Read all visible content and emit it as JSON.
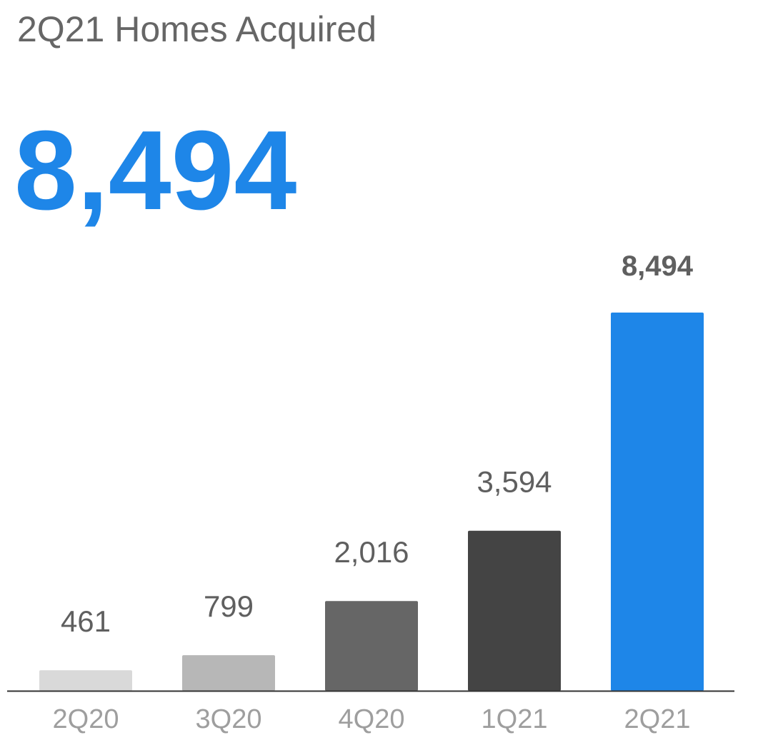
{
  "title": "2Q21 Homes Acquired",
  "headline_value": "8,494",
  "colors": {
    "title": "#666666",
    "headline": "#1e86e8",
    "label": "#5f5f5f",
    "tick": "#9e9e9e",
    "axis": "#333333"
  },
  "chart_data": {
    "type": "bar",
    "title": "2Q21 Homes Acquired",
    "xlabel": "",
    "ylabel": "",
    "ylim": [
      0,
      8494
    ],
    "grid": false,
    "categories": [
      "2Q20",
      "3Q20",
      "4Q20",
      "1Q21",
      "2Q21"
    ],
    "values": [
      461,
      799,
      2016,
      3594,
      8494
    ],
    "value_labels": [
      "461",
      "799",
      "2,016",
      "3,594",
      "8,494"
    ],
    "bar_colors": [
      "#d9d9d9",
      "#b7b7b7",
      "#666666",
      "#444444",
      "#1e86e8"
    ],
    "highlight_index": 4
  }
}
